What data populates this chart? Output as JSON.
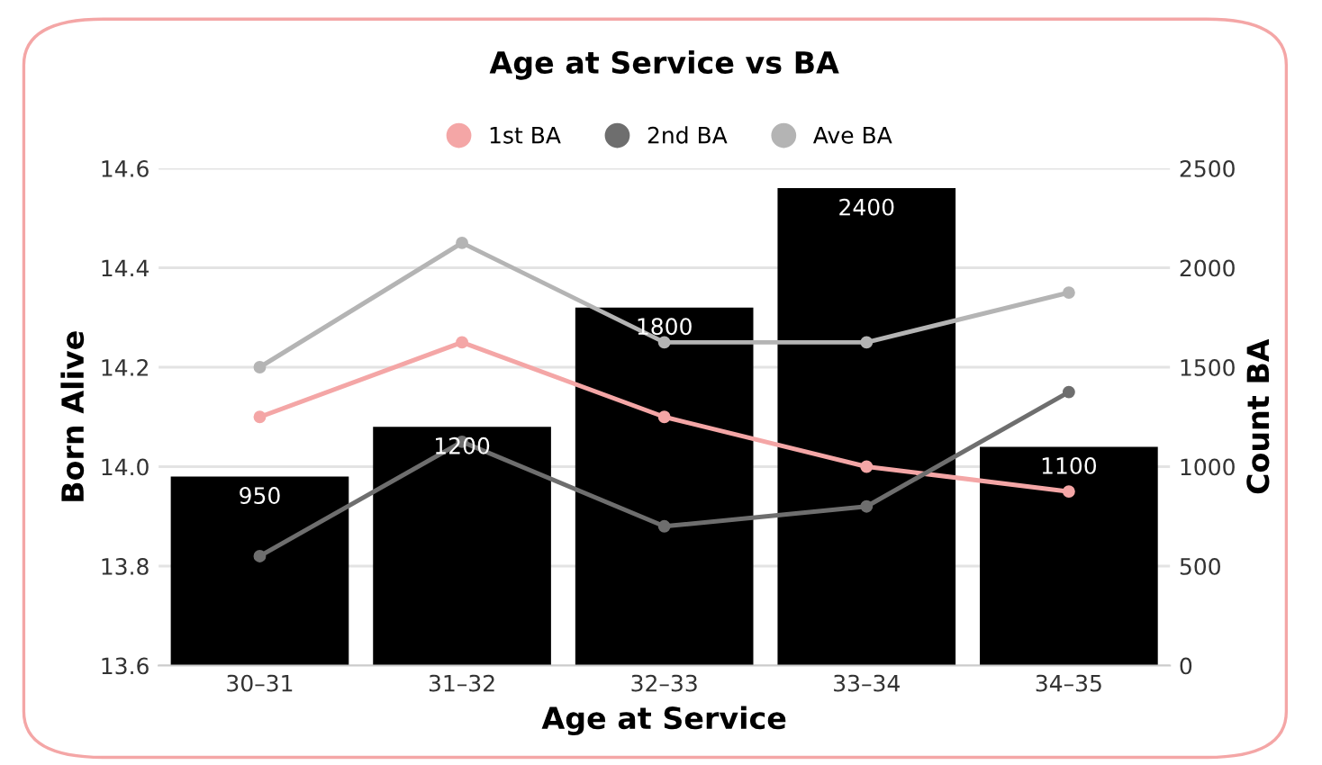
{
  "chart_data": {
    "type": "line",
    "title": "Age at Service vs BA",
    "xlabel": "Age at Service",
    "ylabel": "Born Alive",
    "y2label": "Count BA",
    "categories": [
      "30–31",
      "31–32",
      "32–33",
      "33–34",
      "34–35"
    ],
    "series": [
      {
        "type": "bar",
        "axis": "y2",
        "color": "#000000",
        "values": [
          950,
          1200,
          1800,
          2400,
          1100
        ],
        "value_labels": [
          "950",
          "1200",
          "1800",
          "2400",
          "1100"
        ]
      },
      {
        "name": "1st BA",
        "color": "#f4a6a6",
        "values": [
          14.1,
          14.25,
          14.1,
          14.0,
          13.95
        ]
      },
      {
        "name": "2nd BA",
        "color": "#6e6e6e",
        "values": [
          13.82,
          14.05,
          13.88,
          13.92,
          14.15
        ]
      },
      {
        "name": "Ave BA",
        "color": "#b4b4b4",
        "values": [
          14.2,
          14.45,
          14.25,
          14.25,
          14.35
        ]
      }
    ],
    "ylim": [
      13.6,
      14.6
    ],
    "yticks": [
      13.6,
      13.8,
      {
        "value": 14,
        "label": "14.0"
      },
      14.2,
      14.4,
      14.6
    ],
    "y2lim": [
      0,
      2500
    ],
    "y2ticks": [
      0,
      500,
      1000,
      1500,
      2000,
      2500
    ],
    "grid": "y",
    "legend": "top",
    "marker": "circle",
    "line_style": "solid"
  }
}
